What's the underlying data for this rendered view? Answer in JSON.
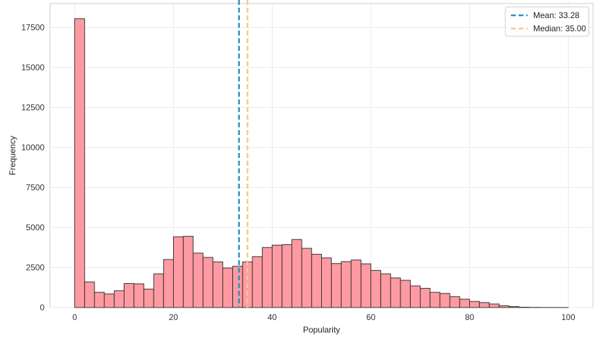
{
  "chart_data": {
    "type": "bar",
    "title": "",
    "xlabel": "Popularity",
    "ylabel": "Frequency",
    "xlim": [
      -5,
      105
    ],
    "ylim": [
      0,
      19000
    ],
    "grid": true,
    "legend_position": "top-right",
    "bin_width": 2,
    "x_ticks": [
      0,
      20,
      40,
      60,
      80,
      100
    ],
    "y_ticks": [
      0,
      2500,
      5000,
      7500,
      10000,
      12500,
      15000,
      17500
    ],
    "bin_starts": [
      0,
      2,
      4,
      6,
      8,
      10,
      12,
      14,
      16,
      18,
      20,
      22,
      24,
      26,
      28,
      30,
      32,
      34,
      36,
      38,
      40,
      42,
      44,
      46,
      48,
      50,
      52,
      54,
      56,
      58,
      60,
      62,
      64,
      66,
      68,
      70,
      72,
      74,
      76,
      78,
      80,
      82,
      84,
      86,
      88,
      90,
      92,
      94,
      96,
      98
    ],
    "values": [
      18050,
      1600,
      950,
      850,
      1050,
      1500,
      1480,
      1150,
      2100,
      3000,
      4420,
      4450,
      3400,
      3130,
      2850,
      2470,
      2580,
      2850,
      3180,
      3750,
      3900,
      3930,
      4250,
      3700,
      3330,
      3100,
      2750,
      2870,
      2970,
      2730,
      2320,
      2100,
      1850,
      1700,
      1350,
      1200,
      950,
      880,
      680,
      520,
      380,
      310,
      220,
      110,
      60,
      20,
      10,
      5,
      3,
      2
    ],
    "series": [
      {
        "name": "Frequency",
        "color": "#ff9aa2",
        "edge_color": "#333333"
      }
    ],
    "reference_lines": [
      {
        "label": "Mean: 33.28",
        "value": 33.28,
        "color": "#2e93b8"
      },
      {
        "label": "Median: 35.00",
        "value": 35.0,
        "color": "#f7c98a"
      }
    ]
  }
}
